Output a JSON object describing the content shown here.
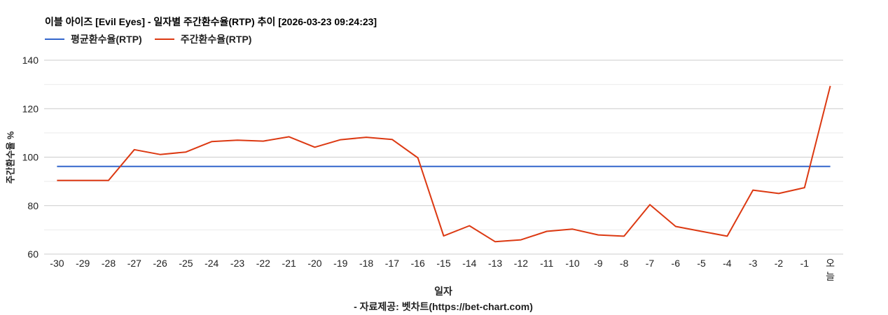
{
  "header": {
    "title": "이블 아이즈 [Evil Eyes] - 일자별 주간환수율(RTP) 추이 [2026-03-23 09:24:23]"
  },
  "legend": [
    {
      "label": "평균환수율(RTP)",
      "color": "#3366cc"
    },
    {
      "label": "주간환수율(RTP)",
      "color": "#dc3912"
    }
  ],
  "axes": {
    "ylabel": "주간환수율 %",
    "xlabel": "일자",
    "yticks": [
      "140",
      "120",
      "100",
      "80",
      "60"
    ]
  },
  "footer": {
    "credit": "- 자료제공: 벳차트(https://bet-chart.com)"
  },
  "chart_data": {
    "type": "line",
    "title": "이블 아이즈 [Evil Eyes] - 일자별 주간환수율(RTP) 추이 [2026-03-23 09:24:23]",
    "xlabel": "일자",
    "ylabel": "주간환수율 %",
    "ylim": [
      60,
      140
    ],
    "yticks": [
      60,
      80,
      100,
      120,
      140
    ],
    "minor_gridlines": [
      70,
      90,
      110,
      130
    ],
    "grid": true,
    "legend_position": "top",
    "categories": [
      "-30",
      "-29",
      "-28",
      "-27",
      "-26",
      "-25",
      "-24",
      "-23",
      "-22",
      "-21",
      "-20",
      "-19",
      "-18",
      "-17",
      "-16",
      "-15",
      "-14",
      "-13",
      "-12",
      "-11",
      "-10",
      "-9",
      "-8",
      "-7",
      "-6",
      "-5",
      "-4",
      "-3",
      "-2",
      "-1",
      "오늘"
    ],
    "series": [
      {
        "name": "평균환수율(RTP)",
        "color": "#3366cc",
        "values": [
          96.2,
          96.2,
          96.2,
          96.2,
          96.2,
          96.2,
          96.2,
          96.2,
          96.2,
          96.2,
          96.2,
          96.2,
          96.2,
          96.2,
          96.2,
          96.2,
          96.2,
          96.2,
          96.2,
          96.2,
          96.2,
          96.2,
          96.2,
          96.2,
          96.2,
          96.2,
          96.2,
          96.2,
          96.2,
          96.2,
          96.2
        ]
      },
      {
        "name": "주간환수율(RTP)",
        "color": "#dc3912",
        "values": [
          90.4,
          90.4,
          90.4,
          103.1,
          101.1,
          102.1,
          106.4,
          107.0,
          106.6,
          108.4,
          104.1,
          107.2,
          108.2,
          107.3,
          99.7,
          67.5,
          71.7,
          65.1,
          65.9,
          69.4,
          70.3,
          67.9,
          67.4,
          80.4,
          71.4,
          69.4,
          67.4,
          86.4,
          85.0,
          87.4,
          129.4
        ]
      }
    ]
  }
}
